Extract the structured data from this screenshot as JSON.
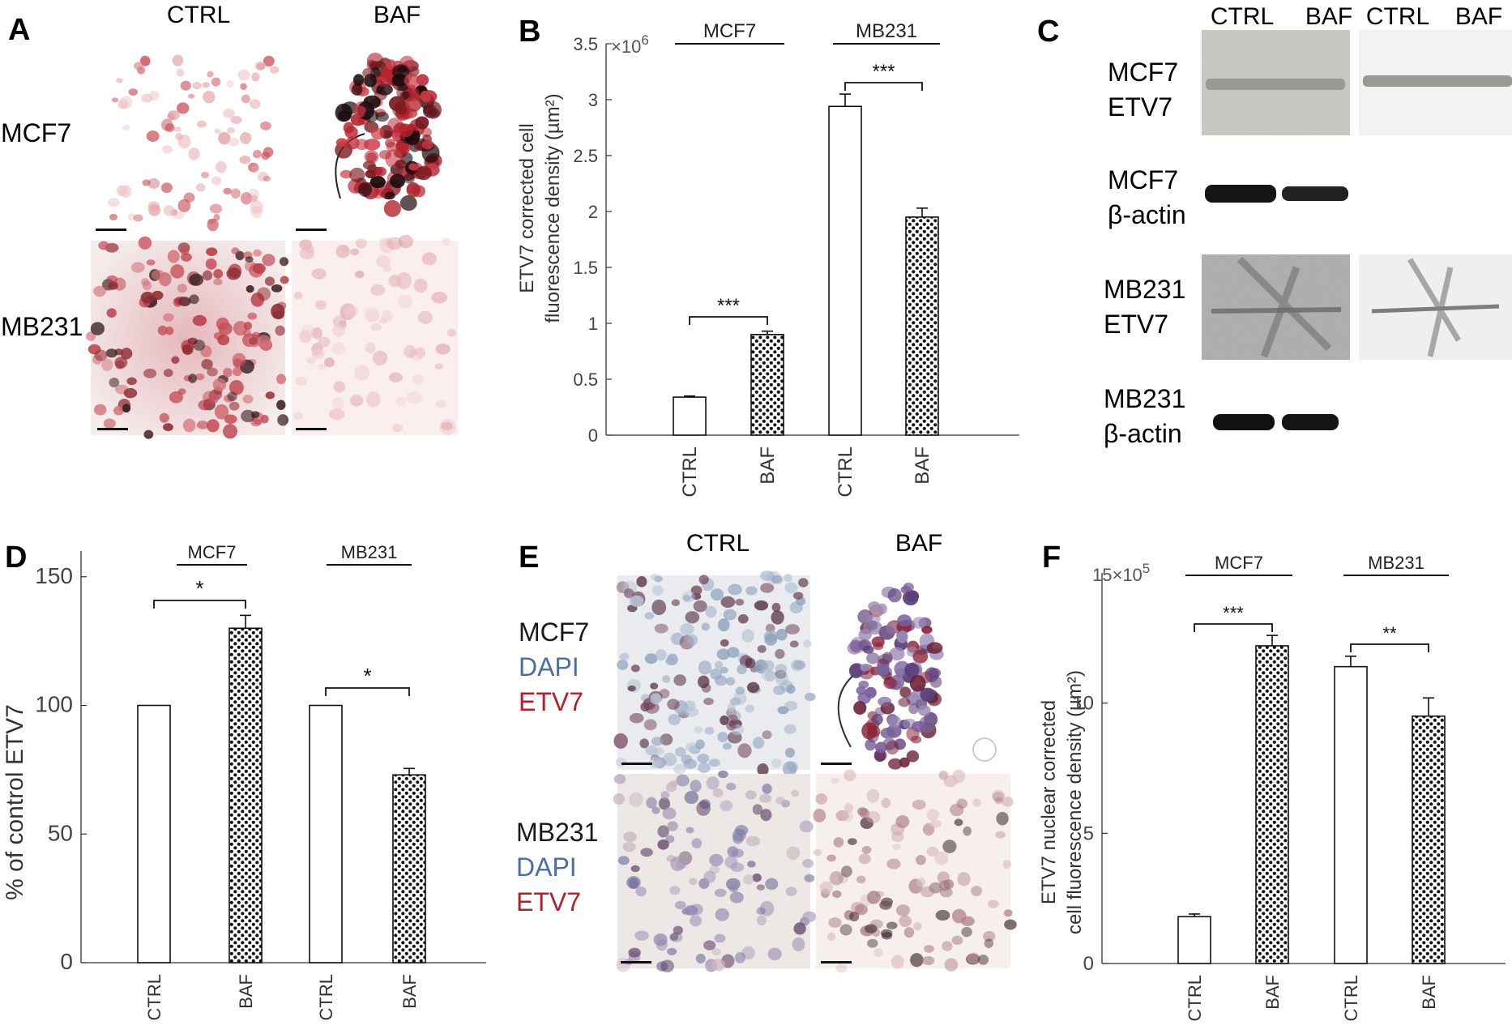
{
  "panels": {
    "A": {
      "letter": "A",
      "col_labels": [
        "CTRL",
        "BAF"
      ],
      "row_labels": [
        "MCF7",
        "MB231"
      ]
    },
    "B": {
      "letter": "B",
      "ylabel_line1": "ETV7 corrected cell",
      "ylabel_line2": "fluorescence density (µm²)",
      "multiplier_base": "×10",
      "multiplier_exp": "6",
      "yticks": [
        "0",
        "0.5",
        "1",
        "1.5",
        "2",
        "2.5",
        "3",
        "3.5"
      ],
      "group_labels": [
        "MCF7",
        "MB231"
      ],
      "xtick_labels": [
        "CTRL",
        "BAF",
        "CTRL",
        "BAF"
      ],
      "significance": [
        "***",
        "***"
      ]
    },
    "C": {
      "letter": "C",
      "col_labels": [
        "CTRL",
        "BAF",
        "CTRL",
        "BAF"
      ],
      "row_labels": [
        [
          "MCF7",
          "ETV7"
        ],
        [
          "MCF7",
          "β-actin"
        ],
        [
          "MB231",
          "ETV7"
        ],
        [
          "MB231",
          "β-actin"
        ]
      ]
    },
    "D": {
      "letter": "D",
      "ylabel": "% of control ETV7",
      "yticks": [
        "0",
        "50",
        "100",
        "150"
      ],
      "group_labels": [
        "MCF7",
        "MB231"
      ],
      "xtick_labels": [
        "CTRL",
        "BAF",
        "CTRL",
        "BAF"
      ],
      "significance": [
        "*",
        "*"
      ]
    },
    "E": {
      "letter": "E",
      "col_labels": [
        "CTRL",
        "BAF"
      ],
      "row_labels": [
        [
          "MCF7",
          "DAPI",
          "ETV7"
        ],
        [
          "MB231",
          "DAPI",
          "ETV7"
        ]
      ]
    },
    "F": {
      "letter": "F",
      "ylabel_line1": "ETV7 nuclear corrected",
      "ylabel_line2": "cell fluorescence density (µm²)",
      "multiplier_base": "15×10",
      "multiplier_exp": "5",
      "yticks": [
        "0",
        "5",
        "10"
      ],
      "group_labels": [
        "MCF7",
        "MB231"
      ],
      "xtick_labels": [
        "CTRL",
        "BAF",
        "CTRL",
        "BAF"
      ],
      "significance": [
        "***",
        "**"
      ]
    }
  },
  "colors": {
    "dapi": "#4a6fa5",
    "etv7": "#b0212a",
    "stain": "#c2343e",
    "text": "#1a1a1a"
  },
  "chart_data": [
    {
      "panel": "B",
      "type": "bar",
      "categories": [
        "MCF7 CTRL",
        "MCF7 BAF",
        "MB231 CTRL",
        "MB231 BAF"
      ],
      "values": [
        340000,
        900000,
        2940000,
        1950000
      ],
      "errors": [
        10000,
        30000,
        110000,
        80000
      ],
      "patterns": [
        "open",
        "dotted",
        "open",
        "dotted"
      ],
      "ylim": [
        0,
        3500000
      ]
    },
    {
      "panel": "D",
      "type": "bar",
      "categories": [
        "MCF7 CTRL",
        "MCF7 BAF",
        "MB231 CTRL",
        "MB231 BAF"
      ],
      "values": [
        100,
        130,
        100,
        73
      ],
      "errors": [
        0,
        5,
        0,
        2.5
      ],
      "patterns": [
        "open",
        "dotted",
        "open",
        "dotted"
      ],
      "ylim": [
        0,
        160
      ]
    },
    {
      "panel": "F",
      "type": "bar",
      "categories": [
        "MCF7 CTRL",
        "MCF7 BAF",
        "MB231 CTRL",
        "MB231 BAF"
      ],
      "values": [
        180000,
        1220000,
        1140000,
        950000
      ],
      "errors": [
        10000,
        40000,
        40000,
        70000
      ],
      "patterns": [
        "open",
        "dotted",
        "open",
        "dotted"
      ],
      "ylim": [
        0,
        1500000
      ]
    }
  ]
}
